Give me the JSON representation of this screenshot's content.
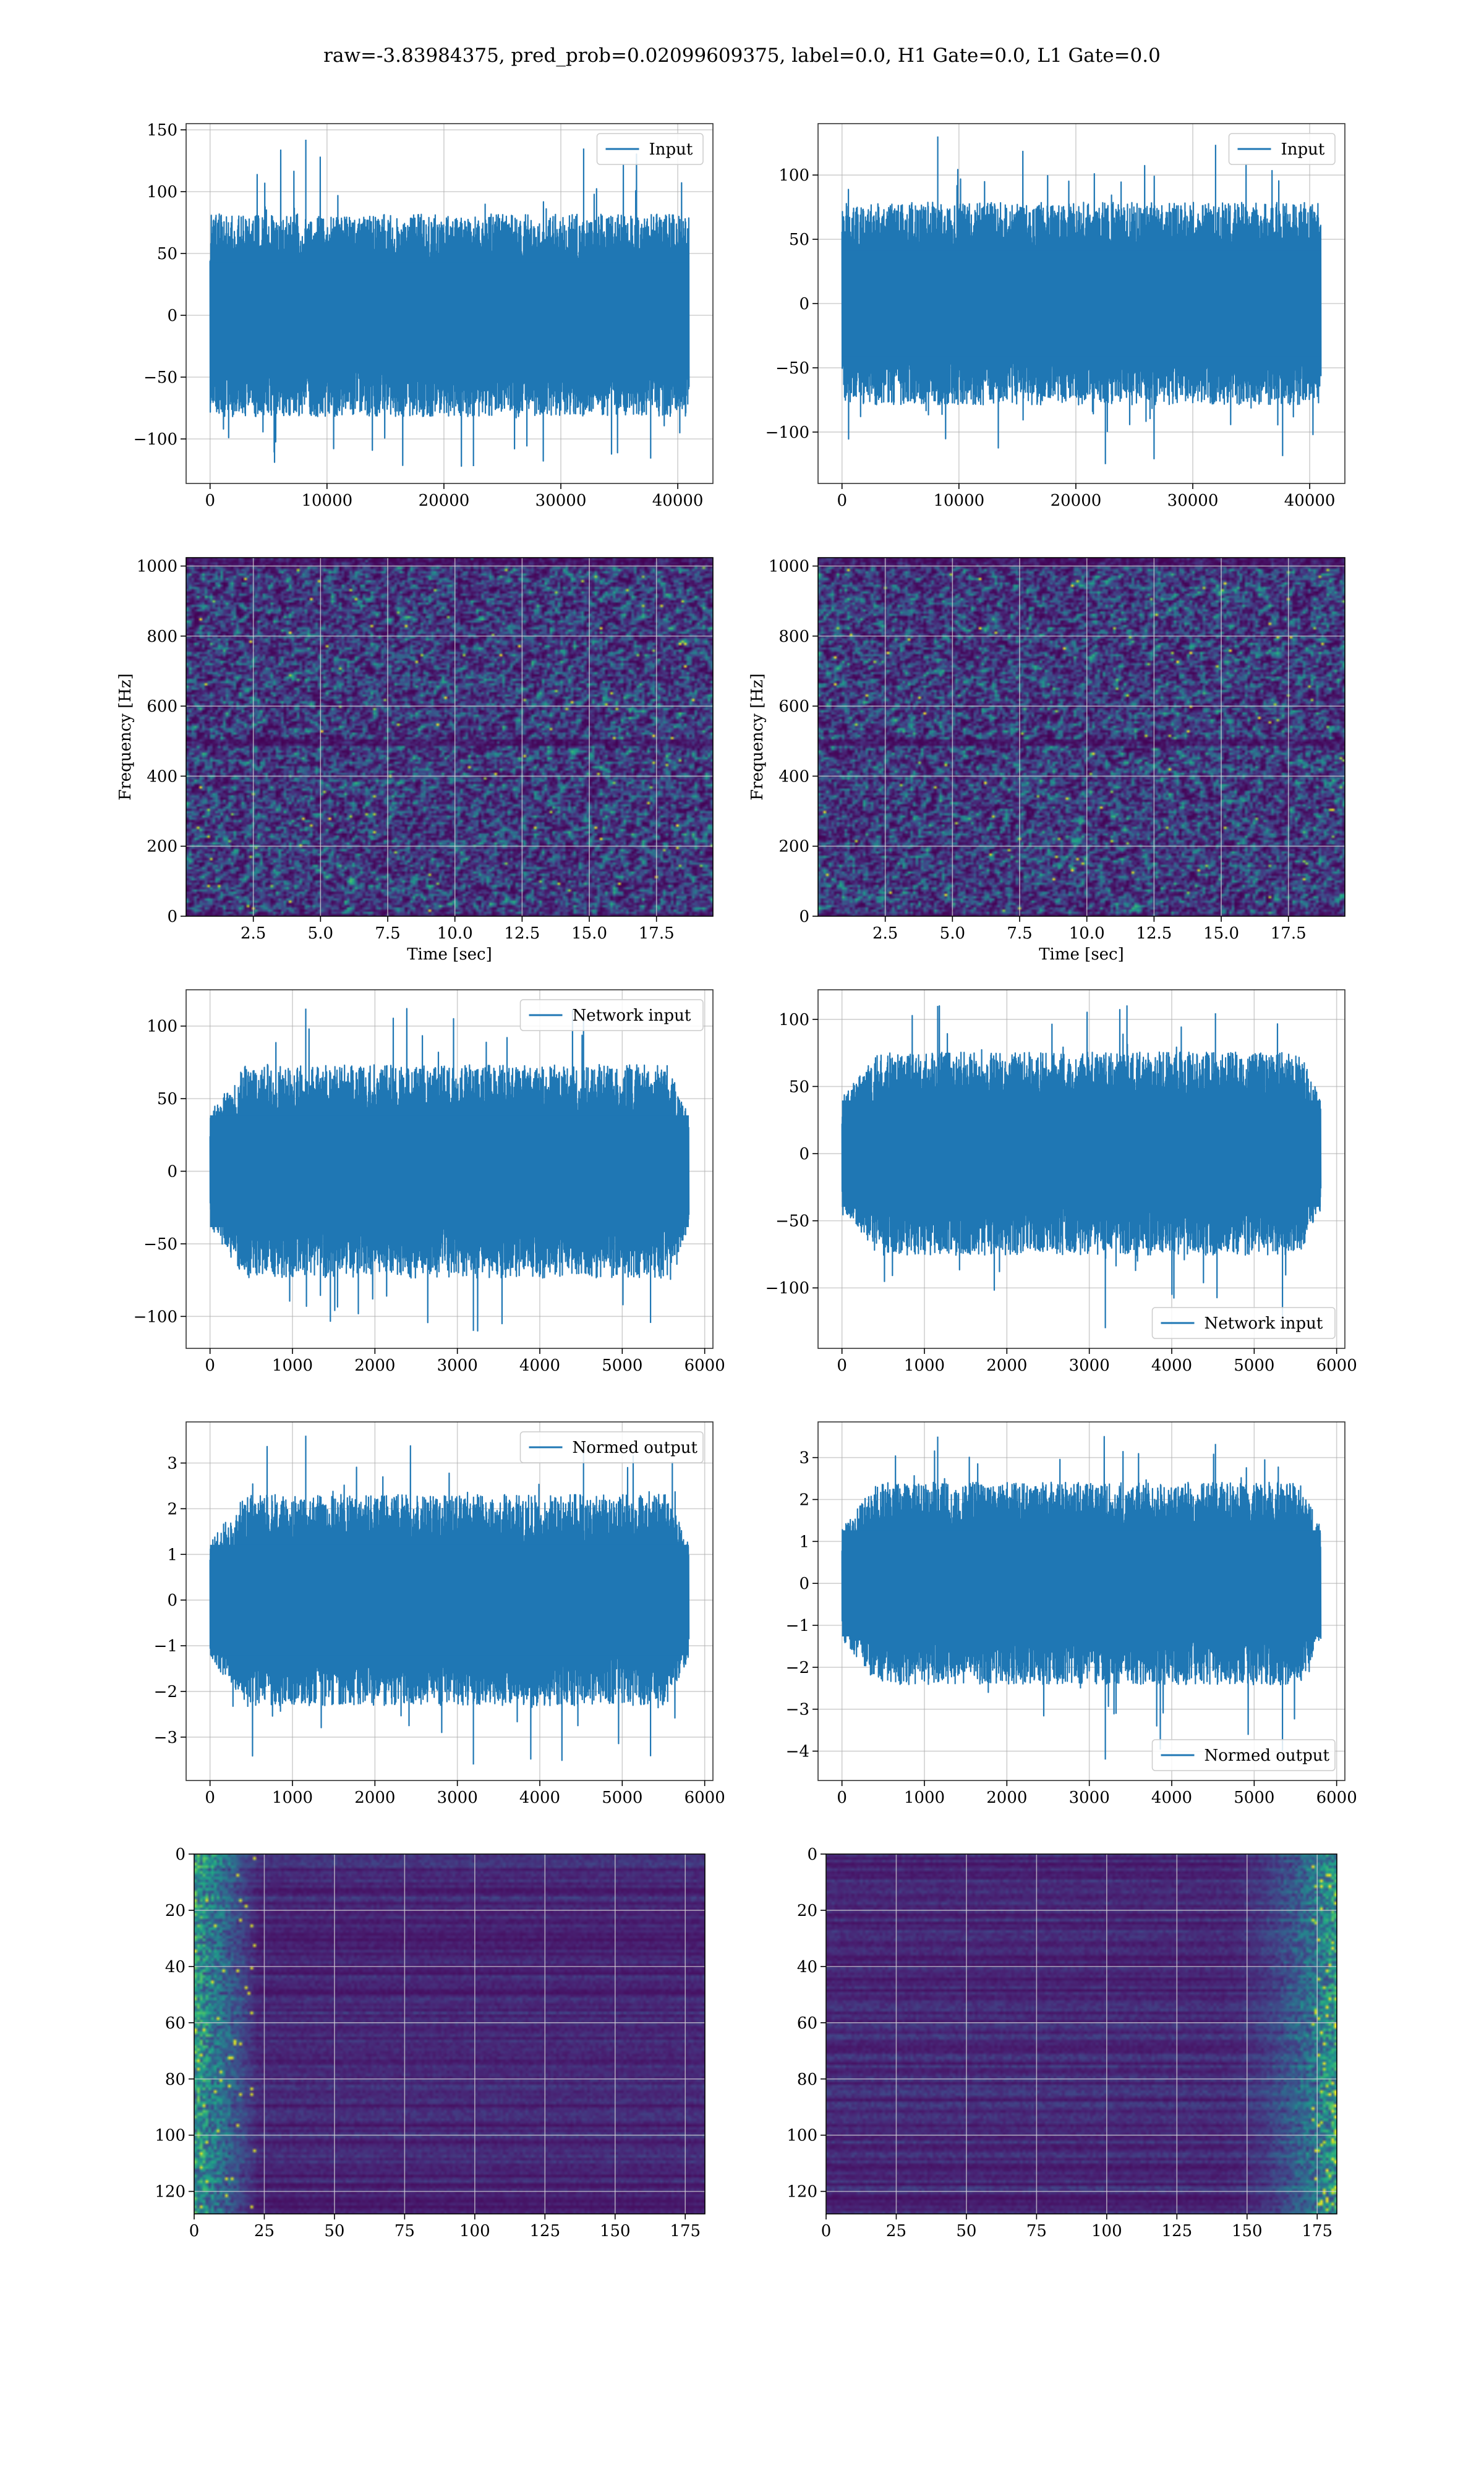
{
  "figure": {
    "suptitle": "raw=-3.83984375, pred_prob=0.02099609375, label=0.0, H1 Gate=0.0, L1 Gate=0.0"
  },
  "colors": {
    "line": "#1f77b4",
    "grid": "#b0b0b0",
    "viridis": [
      "#440154",
      "#482475",
      "#414487",
      "#355f8d",
      "#2a788e",
      "#21918c",
      "#22a884",
      "#44bf70",
      "#7ad151",
      "#bddf26",
      "#fde725"
    ]
  },
  "chart_data": [
    {
      "id": "input-h1",
      "type": "line",
      "x_range": [
        0,
        40960
      ],
      "xlim": [
        -2048,
        43008
      ],
      "ylim": [
        -136,
        155
      ],
      "x_ticks": [
        0,
        10000,
        20000,
        30000,
        40000
      ],
      "x_tick_labels": [
        "0",
        "10000",
        "20000",
        "30000",
        "40000"
      ],
      "y_ticks": [
        -100,
        -50,
        0,
        50,
        100,
        150
      ],
      "y_tick_labels": [
        "−100",
        "−50",
        "0",
        "50",
        "100",
        "150"
      ],
      "series": [
        {
          "name": "Input",
          "amplitude_p99": 78,
          "min": -122,
          "max": 142
        }
      ],
      "legend": "upper right",
      "grid": true,
      "xlabel": "",
      "ylabel": ""
    },
    {
      "id": "input-l1",
      "type": "line",
      "x_range": [
        0,
        40960
      ],
      "xlim": [
        -2048,
        43008
      ],
      "ylim": [
        -140,
        140
      ],
      "x_ticks": [
        0,
        10000,
        20000,
        30000,
        40000
      ],
      "x_tick_labels": [
        "0",
        "10000",
        "20000",
        "30000",
        "40000"
      ],
      "y_ticks": [
        -100,
        -50,
        0,
        50,
        100
      ],
      "y_tick_labels": [
        "−100",
        "−50",
        "0",
        "50",
        "100"
      ],
      "series": [
        {
          "name": "Input",
          "amplitude_p99": 75,
          "min": -125,
          "max": 130
        }
      ],
      "legend": "upper right",
      "grid": true,
      "xlabel": "",
      "ylabel": ""
    },
    {
      "id": "spec-h1",
      "type": "heatmap",
      "xlim": [
        0,
        19.6
      ],
      "ylim": [
        0,
        1024
      ],
      "x_ticks": [
        2.5,
        5.0,
        7.5,
        10.0,
        12.5,
        15.0,
        17.5
      ],
      "x_tick_labels": [
        "2.5",
        "5.0",
        "7.5",
        "10.0",
        "12.5",
        "15.0",
        "17.5"
      ],
      "y_ticks": [
        0,
        200,
        400,
        600,
        800,
        1000
      ],
      "y_tick_labels": [
        "0",
        "200",
        "400",
        "600",
        "800",
        "1000"
      ],
      "xlabel": "Time [sec]",
      "ylabel": "Frequency [Hz]",
      "grid": true,
      "colormap": "viridis"
    },
    {
      "id": "spec-l1",
      "type": "heatmap",
      "xlim": [
        0,
        19.6
      ],
      "ylim": [
        0,
        1024
      ],
      "x_ticks": [
        2.5,
        5.0,
        7.5,
        10.0,
        12.5,
        15.0,
        17.5
      ],
      "x_tick_labels": [
        "2.5",
        "5.0",
        "7.5",
        "10.0",
        "12.5",
        "15.0",
        "17.5"
      ],
      "y_ticks": [
        0,
        200,
        400,
        600,
        800,
        1000
      ],
      "y_tick_labels": [
        "0",
        "200",
        "400",
        "600",
        "800",
        "1000"
      ],
      "xlabel": "Time [sec]",
      "ylabel": "Frequency [Hz]",
      "grid": true,
      "colormap": "viridis"
    },
    {
      "id": "net-h1",
      "type": "line",
      "x_range": [
        0,
        5808
      ],
      "xlim": [
        -290,
        6100
      ],
      "ylim": [
        -122,
        125
      ],
      "x_ticks": [
        0,
        1000,
        2000,
        3000,
        4000,
        5000,
        6000
      ],
      "x_tick_labels": [
        "0",
        "1000",
        "2000",
        "3000",
        "4000",
        "5000",
        "6000"
      ],
      "y_ticks": [
        -100,
        -50,
        0,
        50,
        100
      ],
      "y_tick_labels": [
        "−100",
        "−50",
        "0",
        "50",
        "100"
      ],
      "series": [
        {
          "name": "Network input",
          "amplitude_p99": 70,
          "min": -110,
          "max": 112
        }
      ],
      "legend": "upper right",
      "grid": true,
      "xlabel": "",
      "ylabel": ""
    },
    {
      "id": "net-l1",
      "type": "line",
      "x_range": [
        0,
        5808
      ],
      "xlim": [
        -290,
        6100
      ],
      "ylim": [
        -145,
        122
      ],
      "x_ticks": [
        0,
        1000,
        2000,
        3000,
        4000,
        5000,
        6000
      ],
      "x_tick_labels": [
        "0",
        "1000",
        "2000",
        "3000",
        "4000",
        "5000",
        "6000"
      ],
      "y_ticks": [
        -100,
        -50,
        0,
        50,
        100
      ],
      "y_tick_labels": [
        "−100",
        "−50",
        "0",
        "50",
        "100"
      ],
      "series": [
        {
          "name": "Network input",
          "amplitude_p99": 72,
          "min": -130,
          "max": 110
        }
      ],
      "legend": "lower right",
      "grid": true,
      "xlabel": "",
      "ylabel": ""
    },
    {
      "id": "norm-h1",
      "type": "line",
      "x_range": [
        0,
        5808
      ],
      "xlim": [
        -290,
        6100
      ],
      "ylim": [
        -3.95,
        3.9
      ],
      "x_ticks": [
        0,
        1000,
        2000,
        3000,
        4000,
        5000,
        6000
      ],
      "x_tick_labels": [
        "0",
        "1000",
        "2000",
        "3000",
        "4000",
        "5000",
        "6000"
      ],
      "y_ticks": [
        -3,
        -2,
        -1,
        0,
        1,
        2,
        3
      ],
      "y_tick_labels": [
        "−3",
        "−2",
        "−1",
        "0",
        "1",
        "2",
        "3"
      ],
      "series": [
        {
          "name": "Normed output",
          "amplitude_p99": 2.2,
          "min": -3.6,
          "max": 3.6
        }
      ],
      "legend": "upper right",
      "grid": true,
      "xlabel": "",
      "ylabel": ""
    },
    {
      "id": "norm-l1",
      "type": "line",
      "x_range": [
        0,
        5808
      ],
      "xlim": [
        -290,
        6100
      ],
      "ylim": [
        -4.7,
        3.85
      ],
      "x_ticks": [
        0,
        1000,
        2000,
        3000,
        4000,
        5000,
        6000
      ],
      "x_tick_labels": [
        "0",
        "1000",
        "2000",
        "3000",
        "4000",
        "5000",
        "6000"
      ],
      "y_ticks": [
        -4,
        -3,
        -2,
        -1,
        0,
        1,
        2,
        3
      ],
      "y_tick_labels": [
        "−4",
        "−3",
        "−2",
        "−1",
        "0",
        "1",
        "2",
        "3"
      ],
      "series": [
        {
          "name": "Normed output",
          "amplitude_p99": 2.3,
          "min": -4.2,
          "max": 3.5
        }
      ],
      "legend": "lower right",
      "grid": true,
      "xlabel": "",
      "ylabel": ""
    },
    {
      "id": "feat-h1",
      "type": "heatmap",
      "xlim": [
        0,
        182
      ],
      "ylim": [
        0,
        128
      ],
      "y_inverted": true,
      "x_ticks": [
        0,
        25,
        50,
        75,
        100,
        125,
        150,
        175
      ],
      "x_tick_labels": [
        "0",
        "25",
        "50",
        "75",
        "100",
        "125",
        "150",
        "175"
      ],
      "y_ticks": [
        0,
        20,
        40,
        60,
        80,
        100,
        120
      ],
      "y_tick_labels": [
        "0",
        "20",
        "40",
        "60",
        "80",
        "100",
        "120"
      ],
      "grid": true,
      "colormap": "viridis",
      "active_region": "left",
      "active_cols": [
        0,
        22
      ]
    },
    {
      "id": "feat-l1",
      "type": "heatmap",
      "xlim": [
        0,
        182
      ],
      "ylim": [
        0,
        128
      ],
      "y_inverted": true,
      "x_ticks": [
        0,
        25,
        50,
        75,
        100,
        125,
        150,
        175
      ],
      "x_tick_labels": [
        "0",
        "25",
        "50",
        "75",
        "100",
        "125",
        "150",
        "175"
      ],
      "y_ticks": [
        0,
        20,
        40,
        60,
        80,
        100,
        120
      ],
      "y_tick_labels": [
        "0",
        "20",
        "40",
        "60",
        "80",
        "100",
        "120"
      ],
      "grid": true,
      "colormap": "viridis",
      "active_region": "right",
      "active_cols": [
        140,
        182
      ]
    }
  ]
}
